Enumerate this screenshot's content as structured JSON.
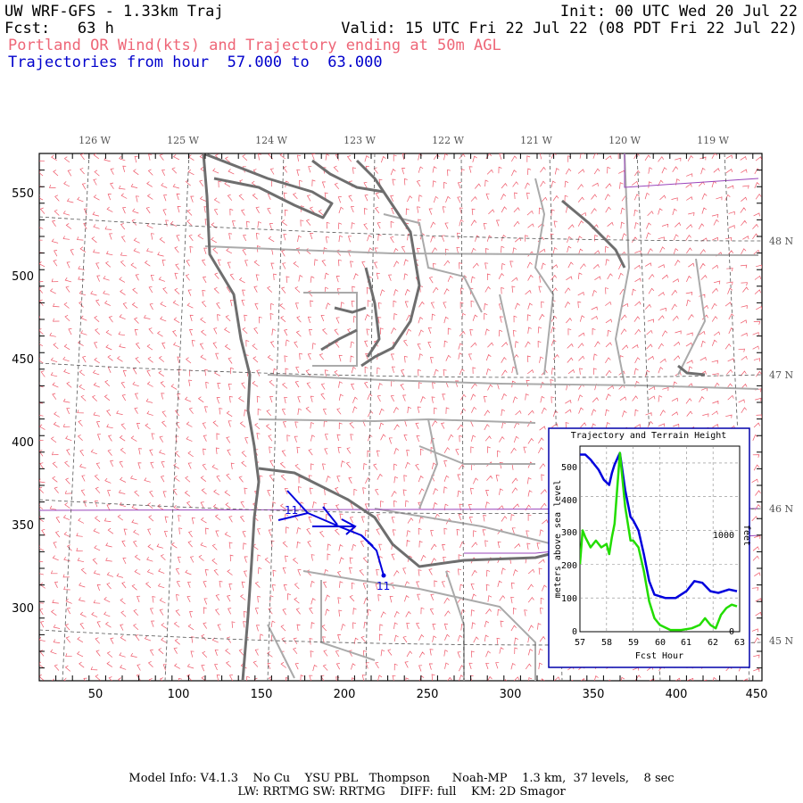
{
  "header": {
    "title_left": "UW WRF-GFS - 1.33km Traj",
    "init": "Init: 00 UTC Wed 20 Jul 22",
    "fcst": "Fcst:   63 h",
    "valid": "Valid: 15 UTC Fri 22 Jul 22 (08 PDT Fri 22 Jul 22)",
    "subtitle_wind": "Portland OR Wind(kts) and Trajectory ending at 50m AGL",
    "subtitle_traj": "Trajectories from hour  57.000 to  63.000"
  },
  "map": {
    "x_ticks": [
      "50",
      "100",
      "150",
      "200",
      "250",
      "300",
      "350",
      "400",
      "450"
    ],
    "y_ticks": [
      "550",
      "500",
      "450",
      "400",
      "350",
      "300"
    ],
    "lon_labels": [
      "126 W",
      "125 W",
      "124 W",
      "123 W",
      "122 W",
      "121 W",
      "120 W",
      "119 W"
    ],
    "lat_labels": [
      "48 N",
      "47 N",
      "46 N",
      "45 N"
    ],
    "trajectory_label_start": "11",
    "trajectory_label_end": "11",
    "colors": {
      "wind_barbs": "#ee5566",
      "coastline": "#6e6e6e",
      "state_lines": "#aaaaaa",
      "trajectory": "#0000dd",
      "grid": "#666666",
      "border": "#8833aa"
    }
  },
  "inset": {
    "title": "Trajectory and Terrain Height",
    "xlabel": "Fcst Hour",
    "ylabel_left": "meters above sea level",
    "ylabel_right": "feet",
    "right_tick": "1000",
    "right_zero": "0",
    "x_ticks": [
      "57",
      "58",
      "59",
      "60",
      "61",
      "62",
      "63"
    ],
    "y_ticks": [
      "0",
      "100",
      "200",
      "300",
      "400",
      "500"
    ]
  },
  "chart_data": {
    "type": "line",
    "title": "Trajectory and Terrain Height",
    "xlabel": "Fcst Hour",
    "ylabel": "meters above sea level",
    "xlim": [
      57,
      63
    ],
    "ylim": [
      0,
      550
    ],
    "series": [
      {
        "color": "#0000dd",
        "x": [
          57.0,
          57.2,
          57.4,
          57.7,
          57.9,
          58.1,
          58.2,
          58.3,
          58.5,
          58.7,
          58.9,
          59.0,
          59.2,
          59.4,
          59.6,
          59.8,
          60.2,
          60.6,
          61.0,
          61.3,
          61.6,
          61.9,
          62.2,
          62.6,
          62.9
        ],
        "y": [
          525,
          525,
          510,
          480,
          450,
          435,
          470,
          495,
          530,
          420,
          340,
          330,
          300,
          230,
          150,
          110,
          100,
          100,
          120,
          150,
          145,
          120,
          115,
          125,
          120
        ]
      },
      {
        "color": "#22dd00",
        "x": [
          57.0,
          57.1,
          57.2,
          57.4,
          57.6,
          57.8,
          58.0,
          58.1,
          58.2,
          58.3,
          58.5,
          58.7,
          58.9,
          59.0,
          59.2,
          59.4,
          59.6,
          59.8,
          60.0,
          60.4,
          60.8,
          61.2,
          61.5,
          61.7,
          61.9,
          62.1,
          62.3,
          62.5,
          62.7,
          62.9
        ],
        "y": [
          200,
          300,
          280,
          250,
          270,
          250,
          260,
          230,
          280,
          320,
          530,
          370,
          270,
          270,
          250,
          180,
          90,
          40,
          20,
          5,
          5,
          10,
          20,
          40,
          20,
          10,
          50,
          70,
          80,
          75
        ]
      }
    ]
  }
}
